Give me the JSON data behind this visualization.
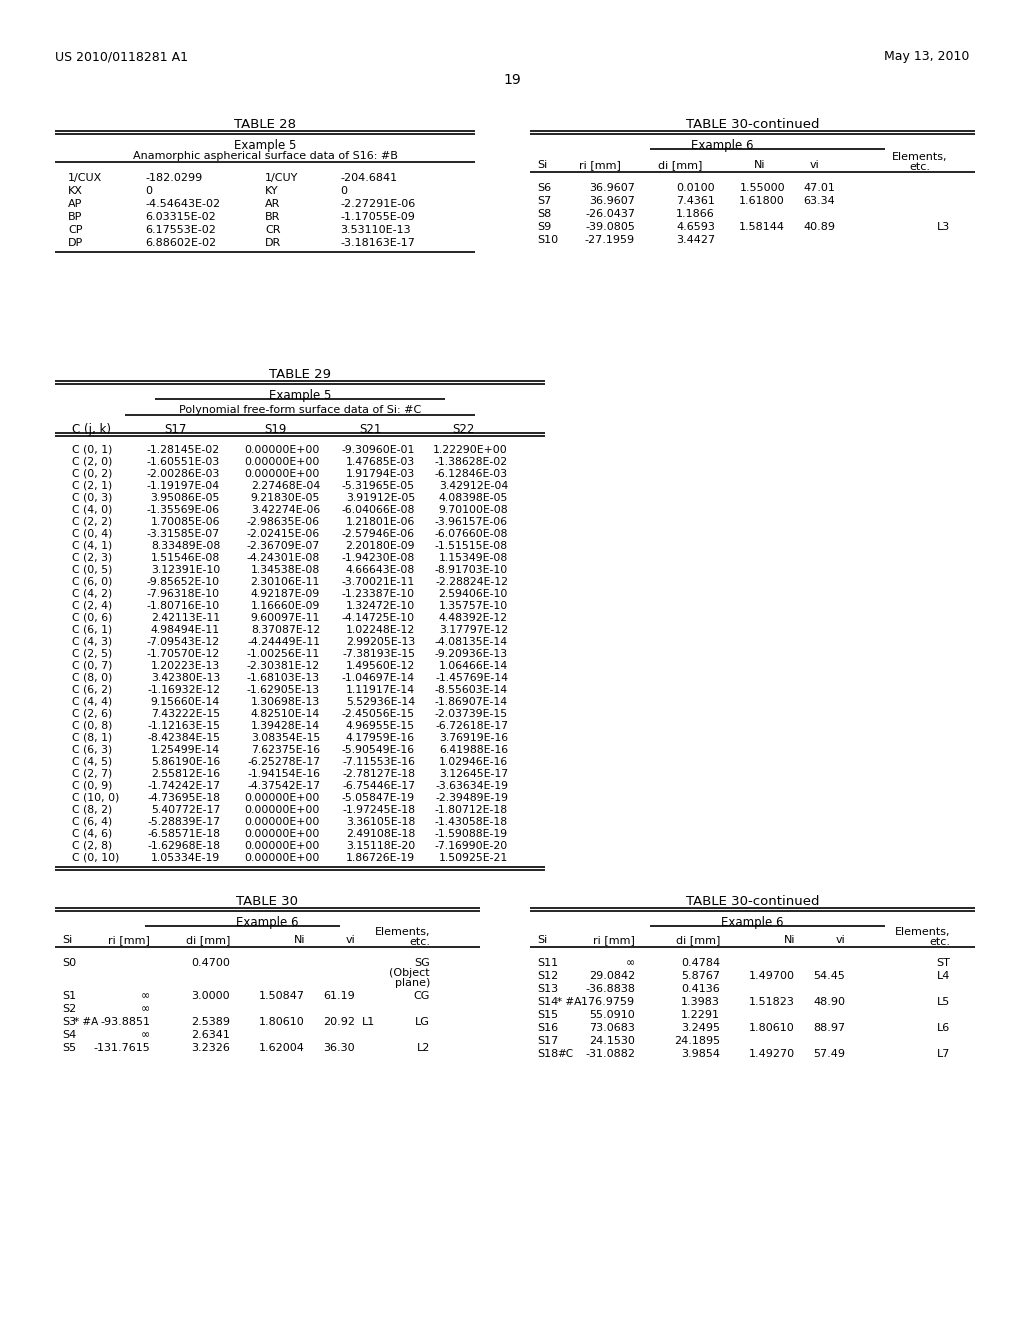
{
  "header_left": "US 2010/0118281 A1",
  "header_right": "May 13, 2010",
  "page_number": "19",
  "background_color": "#ffffff",
  "table28": {
    "title": "TABLE 28",
    "subtitle1": "Example 5",
    "subtitle2": "Anamorphic aspherical surface data of S16: #B",
    "rows": [
      [
        "1/CUX",
        "-182.0299",
        "1/CUY",
        "-204.6841"
      ],
      [
        "KX",
        "0",
        "KY",
        "0"
      ],
      [
        "AP",
        "-4.54643E-02",
        "AR",
        "-2.27291E-06"
      ],
      [
        "BP",
        "6.03315E-02",
        "BR",
        "-1.17055E-09"
      ],
      [
        "CP",
        "6.17553E-02",
        "CR",
        "3.53110E-13"
      ],
      [
        "DP",
        "6.88602E-02",
        "DR",
        "-3.18163E-17"
      ]
    ]
  },
  "table30cont_top": {
    "title": "TABLE 30-continued",
    "subtitle": "Example 6",
    "headers": [
      "Si",
      "ri [mm]",
      "di [mm]",
      "Ni",
      "vi",
      "Elements,\netc."
    ],
    "rows": [
      [
        "S6",
        "36.9607",
        "0.0100",
        "1.55000",
        "47.01",
        ""
      ],
      [
        "S7",
        "36.9607",
        "7.4361",
        "1.61800",
        "63.34",
        ""
      ],
      [
        "S8",
        "-26.0437",
        "1.1866",
        "",
        "",
        ""
      ],
      [
        "S9",
        "-39.0805",
        "4.6593",
        "1.58144",
        "40.89",
        "L3"
      ],
      [
        "S10",
        "-27.1959",
        "3.4427",
        "",
        "",
        ""
      ]
    ]
  },
  "table29": {
    "title": "TABLE 29",
    "subtitle1": "Example 5",
    "subtitle2": "Polynomial free-form surface data of Si: #C",
    "col_headers": [
      "C (j, k)",
      "S17",
      "S19",
      "S21",
      "S22"
    ],
    "rows": [
      [
        "C (0, 1)",
        "-1.28145E-02",
        "0.00000E+00",
        "-9.30960E-01",
        "1.22290E+00"
      ],
      [
        "C (2, 0)",
        "-1.60551E-03",
        "0.00000E+00",
        "1.47685E-03",
        "-1.38628E-02"
      ],
      [
        "C (0, 2)",
        "-2.00286E-03",
        "0.00000E+00",
        "1.91794E-03",
        "-6.12846E-03"
      ],
      [
        "C (2, 1)",
        "-1.19197E-04",
        "2.27468E-04",
        "-5.31965E-05",
        "3.42912E-04"
      ],
      [
        "C (0, 3)",
        "3.95086E-05",
        "9.21830E-05",
        "3.91912E-05",
        "4.08398E-05"
      ],
      [
        "C (4, 0)",
        "-1.35569E-06",
        "3.42274E-06",
        "-6.04066E-08",
        "9.70100E-08"
      ],
      [
        "C (2, 2)",
        "1.70085E-06",
        "-2.98635E-06",
        "1.21801E-06",
        "-3.96157E-06"
      ],
      [
        "C (0, 4)",
        "-3.31585E-07",
        "-2.02415E-06",
        "-2.57946E-06",
        "-6.07660E-08"
      ],
      [
        "C (4, 1)",
        "8.33489E-08",
        "-2.36709E-07",
        "2.20180E-09",
        "-1.51515E-08"
      ],
      [
        "C (2, 3)",
        "1.51546E-08",
        "-4.24301E-08",
        "-1.94230E-08",
        "1.15349E-08"
      ],
      [
        "C (0, 5)",
        "3.12391E-10",
        "1.34538E-08",
        "4.66643E-08",
        "-8.91703E-10"
      ],
      [
        "C (6, 0)",
        "-9.85652E-10",
        "2.30106E-11",
        "-3.70021E-11",
        "-2.28824E-12"
      ],
      [
        "C (4, 2)",
        "-7.96318E-10",
        "4.92187E-09",
        "-1.23387E-10",
        "2.59406E-10"
      ],
      [
        "C (2, 4)",
        "-1.80716E-10",
        "1.16660E-09",
        "1.32472E-10",
        "1.35757E-10"
      ],
      [
        "C (0, 6)",
        "2.42113E-11",
        "9.60097E-11",
        "-4.14725E-10",
        "4.48392E-12"
      ],
      [
        "C (6, 1)",
        "4.98494E-11",
        "8.37087E-12",
        "1.02248E-12",
        "3.17797E-12"
      ],
      [
        "C (4, 3)",
        "-7.09543E-12",
        "-4.24449E-11",
        "2.99205E-13",
        "-4.08135E-14"
      ],
      [
        "C (2, 5)",
        "-1.70570E-12",
        "-1.00256E-11",
        "-7.38193E-15",
        "-9.20936E-13"
      ],
      [
        "C (0, 7)",
        "1.20223E-13",
        "-2.30381E-12",
        "1.49560E-12",
        "1.06466E-14"
      ],
      [
        "C (8, 0)",
        "3.42380E-13",
        "-1.68103E-13",
        "-1.04697E-14",
        "-1.45769E-14"
      ],
      [
        "C (6, 2)",
        "-1.16932E-12",
        "-1.62905E-13",
        "1.11917E-14",
        "-8.55603E-14"
      ],
      [
        "C (4, 4)",
        "9.15660E-14",
        "1.30698E-13",
        "5.52936E-14",
        "-1.86907E-14"
      ],
      [
        "C (2, 6)",
        "7.43222E-15",
        "4.82510E-14",
        "-2.45056E-15",
        "-2.03739E-15"
      ],
      [
        "C (0, 8)",
        "-1.12163E-15",
        "1.39428E-14",
        "4.96955E-15",
        "-6.72618E-17"
      ],
      [
        "C (8, 1)",
        "-8.42384E-15",
        "3.08354E-15",
        "4.17959E-16",
        "3.76919E-16"
      ],
      [
        "C (6, 3)",
        "1.25499E-14",
        "7.62375E-16",
        "-5.90549E-16",
        "6.41988E-16"
      ],
      [
        "C (4, 5)",
        "5.86190E-16",
        "-6.25278E-17",
        "-7.11553E-16",
        "1.02946E-16"
      ],
      [
        "C (2, 7)",
        "2.55812E-16",
        "-1.94154E-16",
        "-2.78127E-18",
        "3.12645E-17"
      ],
      [
        "C (0, 9)",
        "-1.74242E-17",
        "-4.37542E-17",
        "-6.75446E-17",
        "-3.63634E-19"
      ],
      [
        "C (10, 0)",
        "-4.73695E-18",
        "0.00000E+00",
        "-5.05847E-19",
        "-2.39489E-19"
      ],
      [
        "C (8, 2)",
        "5.40772E-17",
        "0.00000E+00",
        "-1.97245E-18",
        "-1.80712E-18"
      ],
      [
        "C (6, 4)",
        "-5.28839E-17",
        "0.00000E+00",
        "3.36105E-18",
        "-1.43058E-18"
      ],
      [
        "C (4, 6)",
        "-6.58571E-18",
        "0.00000E+00",
        "2.49108E-18",
        "-1.59088E-19"
      ],
      [
        "C (2, 8)",
        "-1.62968E-18",
        "0.00000E+00",
        "3.15118E-20",
        "-7.16990E-20"
      ],
      [
        "C (0, 10)",
        "1.05334E-19",
        "0.00000E+00",
        "1.86726E-19",
        "1.50925E-21"
      ]
    ]
  },
  "table30": {
    "title": "TABLE 30",
    "subtitle": "Example 6",
    "headers": [
      "Si",
      "ri [mm]",
      "di [mm]",
      "Ni",
      "vi",
      "Elements,\netc."
    ],
    "rows": [
      [
        "S0",
        "",
        "0.4700",
        "",
        "",
        "SG\n(Object\nplane)"
      ],
      [
        "S1",
        "∞",
        "3.0000",
        "1.50847",
        "61.19",
        "CG"
      ],
      [
        "S2",
        "∞",
        "",
        "",
        "",
        ""
      ],
      [
        "S3",
        "-93.8851",
        "2.5389",
        "1.80610",
        "20.92",
        "L1   LG"
      ],
      [
        "S4",
        "∞",
        "2.6341",
        "",
        "",
        ""
      ],
      [
        "S5",
        "-131.7615",
        "3.2326",
        "1.62004",
        "36.30",
        "L2"
      ]
    ],
    "s3_prefix": "* #A",
    "s0_extra": ""
  },
  "table30cont_bottom": {
    "title": "TABLE 30-continued",
    "subtitle": "Example 6",
    "headers": [
      "Si",
      "ri [mm]",
      "di [mm]",
      "Ni",
      "vi",
      "Elements,\netc."
    ],
    "rows": [
      [
        "S11",
        "∞",
        "0.4784",
        "",
        "",
        "ST"
      ],
      [
        "S12",
        "29.0842",
        "5.8767",
        "1.49700",
        "54.45",
        "L4"
      ],
      [
        "S13",
        "-36.8838",
        "0.4136",
        "",
        "",
        ""
      ],
      [
        "S14",
        "-176.9759",
        "1.3983",
        "1.51823",
        "48.90",
        "L5"
      ],
      [
        "S15",
        "55.0910",
        "1.2291",
        "",
        "",
        ""
      ],
      [
        "S16",
        "73.0683",
        "3.2495",
        "1.80610",
        "88.97",
        "L6"
      ],
      [
        "S17",
        "24.1530",
        "24.1895",
        "",
        "",
        ""
      ],
      [
        "S18",
        "-31.0882",
        "3.9854",
        "1.49270",
        "57.49",
        "L7"
      ]
    ],
    "s14_prefix": "* #A",
    "s18_prefix": "#C"
  }
}
